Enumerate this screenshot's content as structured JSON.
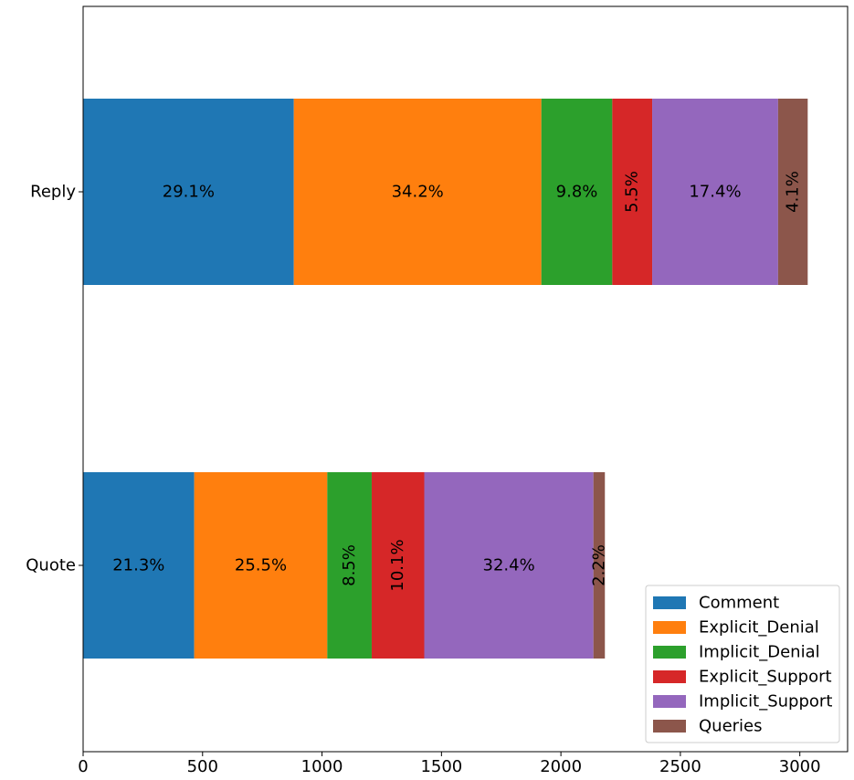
{
  "chart_data": {
    "type": "bar",
    "orientation": "horizontal",
    "stacked": true,
    "categories": [
      "Quote",
      "Reply"
    ],
    "series": [
      {
        "name": "Comment",
        "color": "#1f77b4",
        "values": [
          465,
          882
        ],
        "labels": [
          "21.3%",
          "29.1%"
        ]
      },
      {
        "name": "Explicit_Denial",
        "color": "#ff7f0e",
        "values": [
          557,
          1036
        ],
        "labels": [
          "25.5%",
          "34.2%"
        ]
      },
      {
        "name": "Implicit_Denial",
        "color": "#2ca02c",
        "values": [
          186,
          297
        ],
        "labels": [
          "8.5%",
          "9.8%"
        ]
      },
      {
        "name": "Explicit_Support",
        "color": "#d62728",
        "values": [
          220,
          167
        ],
        "labels": [
          "10.1%",
          "5.5%"
        ]
      },
      {
        "name": "Implicit_Support",
        "color": "#9467bd",
        "values": [
          708,
          527
        ],
        "labels": [
          "32.4%",
          "17.4%"
        ]
      },
      {
        "name": "Queries",
        "color": "#8c564b",
        "values": [
          48,
          124
        ],
        "labels": [
          "2.2%",
          "4.1%"
        ]
      }
    ],
    "xlim": [
      0,
      3200
    ],
    "xticks": [
      "0",
      "500",
      "1000",
      "1500",
      "2000",
      "2500",
      "3000"
    ],
    "xtick_values": [
      0,
      500,
      1000,
      1500,
      2000,
      2500,
      3000
    ],
    "grid": false,
    "legend_position": "lower-right"
  }
}
